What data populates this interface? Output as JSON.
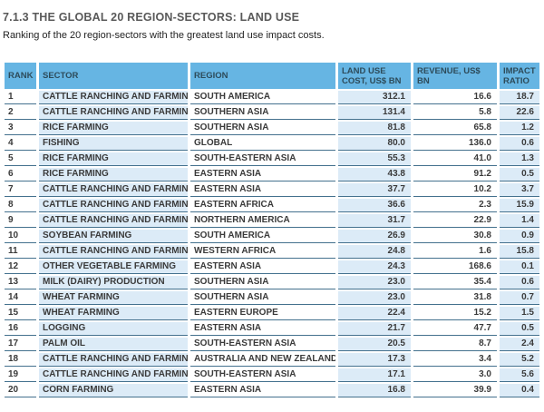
{
  "title": "7.1.3 THE GLOBAL 20 REGION-SECTORS: LAND USE",
  "subtitle": "Ranking of the 20 region-sectors with the greatest land use impact costs.",
  "colors": {
    "header_bg": "#66B5E3",
    "row_alt_bg": "#DCEBF7",
    "row_line": "#44718E",
    "title_text": "#595959",
    "header_text": "#2D4B5A",
    "body_text": "#3A3A3A"
  },
  "table": {
    "headers": [
      {
        "key": "rank",
        "label": "RANK"
      },
      {
        "key": "sector",
        "label": "SECTOR"
      },
      {
        "key": "region",
        "label": "REGION"
      },
      {
        "key": "cost",
        "label": "LAND USE COST, US$ BN"
      },
      {
        "key": "revenue",
        "label": "REVENUE, US$ BN"
      },
      {
        "key": "ratio",
        "label": "IMPACT RATIO"
      }
    ],
    "rows": [
      {
        "rank": "1",
        "sector": "CATTLE RANCHING AND FARMING",
        "region": "SOUTH AMERICA",
        "cost": "312.1",
        "revenue": "16.6",
        "ratio": "18.7"
      },
      {
        "rank": "2",
        "sector": "CATTLE RANCHING AND FARMING",
        "region": "SOUTHERN ASIA",
        "cost": "131.4",
        "revenue": "5.8",
        "ratio": "22.6"
      },
      {
        "rank": "3",
        "sector": "RICE FARMING",
        "region": "SOUTHERN ASIA",
        "cost": "81.8",
        "revenue": "65.8",
        "ratio": "1.2"
      },
      {
        "rank": "4",
        "sector": "FISHING",
        "region": "GLOBAL",
        "cost": "80.0",
        "revenue": "136.0",
        "ratio": "0.6"
      },
      {
        "rank": "5",
        "sector": "RICE FARMING",
        "region": "SOUTH-EASTERN ASIA",
        "cost": "55.3",
        "revenue": "41.0",
        "ratio": "1.3"
      },
      {
        "rank": "6",
        "sector": "RICE FARMING",
        "region": "EASTERN ASIA",
        "cost": "43.8",
        "revenue": "91.2",
        "ratio": "0.5"
      },
      {
        "rank": "7",
        "sector": "CATTLE RANCHING AND FARMING",
        "region": "EASTERN ASIA",
        "cost": "37.7",
        "revenue": "10.2",
        "ratio": "3.7"
      },
      {
        "rank": "8",
        "sector": "CATTLE RANCHING AND FARMING",
        "region": "EASTERN AFRICA",
        "cost": "36.6",
        "revenue": "2.3",
        "ratio": "15.9"
      },
      {
        "rank": "9",
        "sector": "CATTLE RANCHING AND FARMING",
        "region": "NORTHERN AMERICA",
        "cost": "31.7",
        "revenue": "22.9",
        "ratio": "1.4"
      },
      {
        "rank": "10",
        "sector": "SOYBEAN FARMING",
        "region": "SOUTH AMERICA",
        "cost": "26.9",
        "revenue": "30.8",
        "ratio": "0.9"
      },
      {
        "rank": "11",
        "sector": "CATTLE RANCHING AND FARMING",
        "region": "WESTERN AFRICA",
        "cost": "24.8",
        "revenue": "1.6",
        "ratio": "15.8"
      },
      {
        "rank": "12",
        "sector": "OTHER VEGETABLE FARMING",
        "region": "EASTERN ASIA",
        "cost": "24.3",
        "revenue": "168.6",
        "ratio": "0.1"
      },
      {
        "rank": "13",
        "sector": "MILK (DAIRY) PRODUCTION",
        "region": "SOUTHERN ASIA",
        "cost": "23.0",
        "revenue": "35.4",
        "ratio": "0.6"
      },
      {
        "rank": "14",
        "sector": "WHEAT FARMING",
        "region": "SOUTHERN ASIA",
        "cost": "23.0",
        "revenue": "31.8",
        "ratio": "0.7"
      },
      {
        "rank": "15",
        "sector": "WHEAT FARMING",
        "region": "EASTERN EUROPE",
        "cost": "22.4",
        "revenue": "15.2",
        "ratio": "1.5"
      },
      {
        "rank": "16",
        "sector": "LOGGING",
        "region": "EASTERN ASIA",
        "cost": "21.7",
        "revenue": "47.7",
        "ratio": "0.5"
      },
      {
        "rank": "17",
        "sector": "PALM OIL",
        "region": "SOUTH-EASTERN ASIA",
        "cost": "20.5",
        "revenue": "8.7",
        "ratio": "2.4"
      },
      {
        "rank": "18",
        "sector": "CATTLE RANCHING AND FARMING",
        "region": "AUSTRALIA AND NEW ZEALAND",
        "cost": "17.3",
        "revenue": "3.4",
        "ratio": "5.2"
      },
      {
        "rank": "19",
        "sector": "CATTLE RANCHING AND FARMING",
        "region": "SOUTH-EASTERN ASIA",
        "cost": "17.1",
        "revenue": "3.0",
        "ratio": "5.6"
      },
      {
        "rank": "20",
        "sector": "CORN FARMING",
        "region": "EASTERN ASIA",
        "cost": "16.8",
        "revenue": "39.9",
        "ratio": "0.4"
      }
    ]
  }
}
